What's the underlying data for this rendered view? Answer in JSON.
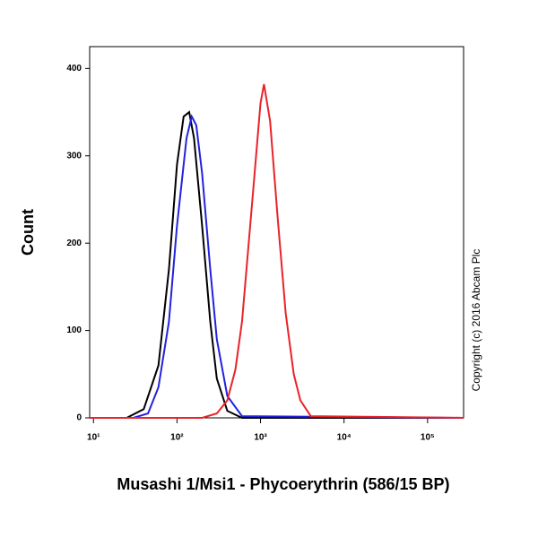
{
  "chart_data": {
    "type": "line",
    "y_label": "Count",
    "x_label": "Musashi 1/Msi1 - Phycoerythrin (586/15 BP)",
    "copyright": "Copyright (c) 2016 Abcam Plc",
    "xscale": "log",
    "xlim": [
      9,
      270000
    ],
    "ylim": [
      0,
      425
    ],
    "xticks": [
      {
        "value": 10,
        "label": "10¹"
      },
      {
        "value": 100,
        "label": "10²"
      },
      {
        "value": 1000,
        "label": "10³"
      },
      {
        "value": 10000,
        "label": "10⁴"
      },
      {
        "value": 100000,
        "label": "10⁵"
      }
    ],
    "yticks": [
      0,
      100,
      200,
      300,
      400
    ],
    "series": [
      {
        "color": "#000000",
        "x": [
          9,
          25,
          40,
          60,
          80,
          100,
          120,
          140,
          160,
          200,
          250,
          300,
          400,
          600,
          270000
        ],
        "values": [
          0,
          0,
          10,
          60,
          170,
          290,
          345,
          350,
          320,
          220,
          110,
          45,
          8,
          0,
          0
        ]
      },
      {
        "color": "#2222dd",
        "x": [
          9,
          30,
          45,
          60,
          80,
          100,
          130,
          150,
          170,
          200,
          250,
          300,
          400,
          600,
          270000
        ],
        "values": [
          0,
          0,
          5,
          35,
          110,
          220,
          320,
          345,
          335,
          280,
          170,
          90,
          25,
          2,
          0
        ]
      },
      {
        "color": "#e8232a",
        "x": [
          9,
          200,
          300,
          400,
          500,
          600,
          800,
          1000,
          1100,
          1300,
          1600,
          2000,
          2500,
          3000,
          4000,
          270000
        ],
        "values": [
          0,
          0,
          5,
          20,
          55,
          110,
          250,
          360,
          382,
          340,
          230,
          120,
          50,
          20,
          2,
          0
        ]
      }
    ]
  }
}
